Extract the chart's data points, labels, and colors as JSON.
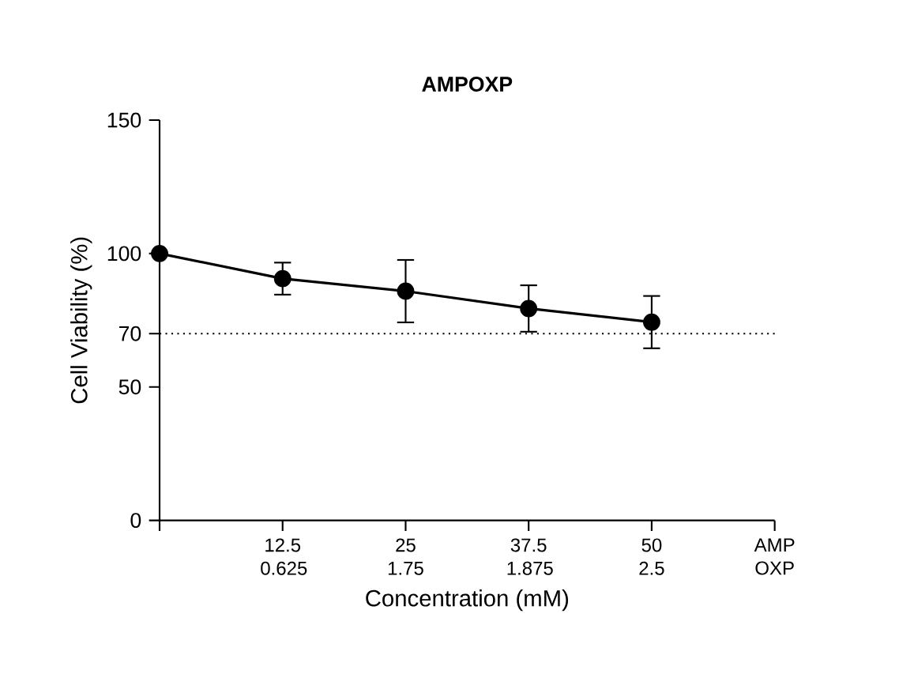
{
  "chart_data": {
    "type": "line",
    "title": "AMPOXP",
    "xlabel": "Concentration (mM)",
    "ylabel": "Cell Viability (%)",
    "categories": [
      null,
      "12.5 0.625",
      "25 1.75",
      "37.5 1.875",
      "50 2.5",
      "AMP OXP"
    ],
    "series": [
      {
        "color": "#000000",
        "values": [
          100,
          90.6,
          85.9,
          79.4,
          74.3,
          null
        ],
        "errors": [
          null,
          6,
          11.7,
          8.7,
          9.8,
          null
        ]
      }
    ],
    "ylim": [
      0,
      150
    ],
    "yticks": [
      0,
      50,
      70,
      100,
      150
    ],
    "ref_lines": [
      {
        "axis": "y",
        "value": 70,
        "line_style": "dotted",
        "color": "#000000"
      }
    ],
    "marker": "circle",
    "line_style": "solid"
  }
}
